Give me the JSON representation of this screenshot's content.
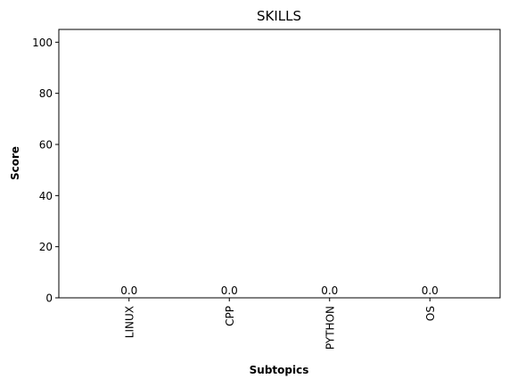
{
  "chart_data": {
    "type": "bar",
    "title": "SKILLS",
    "xlabel": "Subtopics",
    "ylabel": "Score",
    "categories": [
      "LINUX",
      "CPP",
      "PYTHON",
      "OS"
    ],
    "values": [
      0.0,
      0.0,
      0.0,
      0.0
    ],
    "data_labels": [
      "0.0",
      "0.0",
      "0.0",
      "0.0"
    ],
    "ylim": [
      0,
      105
    ],
    "yticks": [
      0,
      20,
      40,
      60,
      80,
      100
    ],
    "grid": false,
    "legend": "none",
    "bar_color": "#1f77b4"
  }
}
